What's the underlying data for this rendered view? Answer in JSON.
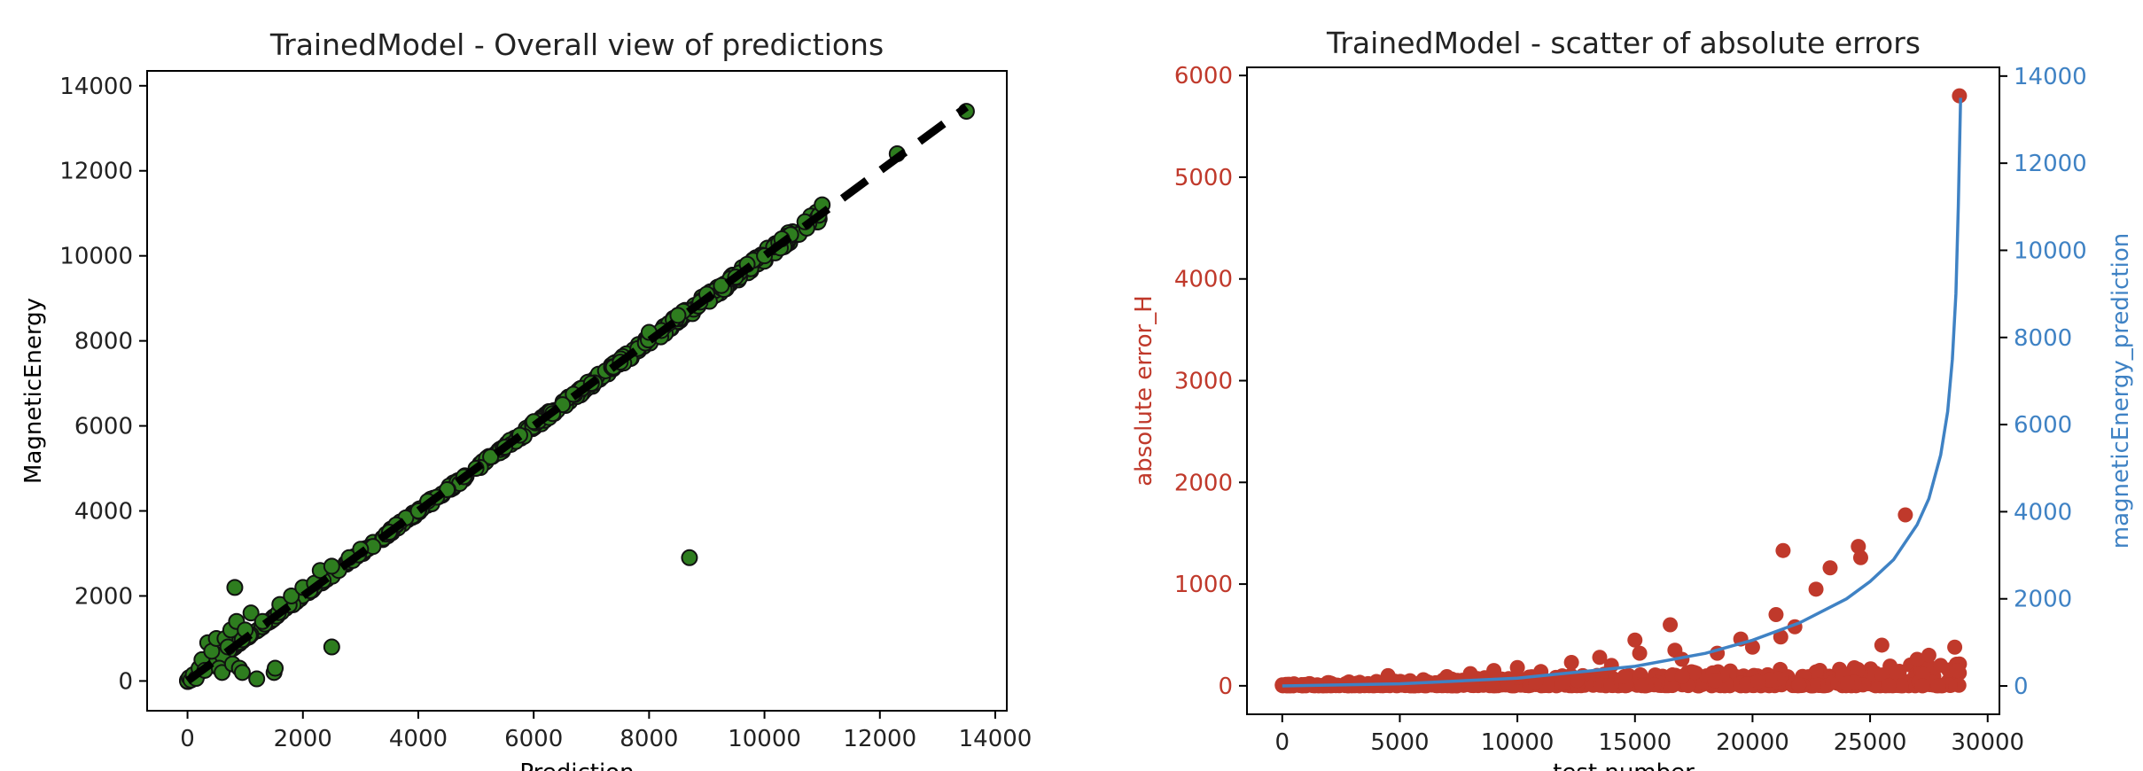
{
  "colors": {
    "axis": "#000000",
    "text": "#222222",
    "point_fill": "#2e7d1f",
    "point_edge": "#111111",
    "identity_line": "#000000",
    "error_points": "#c0392b",
    "error_axis": "#c0392b",
    "pred_line": "#3f82c4",
    "pred_axis": "#3f82c4"
  },
  "chart_data": [
    {
      "type": "scatter",
      "title": "TrainedModel - Overall view of predictions",
      "xlabel": "Prediction",
      "ylabel": "MagneticEnergy",
      "xlim": [
        -700,
        14200
      ],
      "ylim": [
        -700,
        14350
      ],
      "xticks": [
        0,
        2000,
        4000,
        6000,
        8000,
        10000,
        12000,
        14000
      ],
      "yticks": [
        0,
        2000,
        4000,
        6000,
        8000,
        10000,
        12000,
        14000
      ],
      "grid": false,
      "identity_line": {
        "x": [
          0,
          13500
        ],
        "y": [
          0,
          13500
        ],
        "style": "dashed"
      },
      "bulk_range": [
        0,
        11000
      ],
      "points": [
        [
          0,
          0
        ],
        [
          30,
          80
        ],
        [
          60,
          20
        ],
        [
          100,
          150
        ],
        [
          150,
          60
        ],
        [
          200,
          300
        ],
        [
          250,
          500
        ],
        [
          300,
          250
        ],
        [
          350,
          900
        ],
        [
          420,
          700
        ],
        [
          500,
          1000
        ],
        [
          550,
          300
        ],
        [
          600,
          200
        ],
        [
          650,
          1000
        ],
        [
          700,
          800
        ],
        [
          750,
          1200
        ],
        [
          780,
          400
        ],
        [
          820,
          2200
        ],
        [
          850,
          1400
        ],
        [
          900,
          300
        ],
        [
          950,
          200
        ],
        [
          1000,
          1200
        ],
        [
          1100,
          1600
        ],
        [
          1200,
          50
        ],
        [
          1300,
          1400
        ],
        [
          1500,
          200
        ],
        [
          1520,
          300
        ],
        [
          1600,
          1800
        ],
        [
          1800,
          2000
        ],
        [
          2000,
          2200
        ],
        [
          2200,
          2300
        ],
        [
          2300,
          2600
        ],
        [
          2500,
          800
        ],
        [
          2500,
          2700
        ],
        [
          2800,
          2900
        ],
        [
          3000,
          3100
        ],
        [
          3500,
          3500
        ],
        [
          4000,
          4000
        ],
        [
          4500,
          4500
        ],
        [
          5000,
          5000
        ],
        [
          5500,
          5500
        ],
        [
          6000,
          6100
        ],
        [
          6500,
          6500
        ],
        [
          7000,
          7000
        ],
        [
          7500,
          7500
        ],
        [
          8000,
          8200
        ],
        [
          8500,
          8600
        ],
        [
          8700,
          2900
        ],
        [
          9000,
          9100
        ],
        [
          9500,
          9500
        ],
        [
          9700,
          9800
        ],
        [
          10000,
          10000
        ],
        [
          10300,
          10400
        ],
        [
          10700,
          10800
        ],
        [
          11000,
          11200
        ],
        [
          12300,
          12400
        ],
        [
          13500,
          13400
        ]
      ]
    },
    {
      "type": "scatter",
      "title": "TrainedModel - scatter of absolute errors",
      "xlabel": "test number",
      "ylabel": "absolute error_H",
      "y2label": "magneticEnergy_prediction",
      "xlim": [
        -1500,
        30500
      ],
      "ylim": [
        -280,
        6080
      ],
      "y2lim": [
        -650,
        14200
      ],
      "xticks": [
        0,
        5000,
        10000,
        15000,
        20000,
        25000,
        30000
      ],
      "yticks": [
        0,
        1000,
        2000,
        3000,
        4000,
        5000,
        6000
      ],
      "y2ticks": [
        0,
        2000,
        4000,
        6000,
        8000,
        10000,
        12000,
        14000
      ],
      "grid": false,
      "series": [
        {
          "name": "absolute error_H",
          "axis": "left",
          "points": [
            [
              0,
              10
            ],
            [
              2000,
              30
            ],
            [
              4500,
              100
            ],
            [
              6000,
              60
            ],
            [
              7000,
              90
            ],
            [
              8000,
              120
            ],
            [
              9000,
              150
            ],
            [
              10000,
              180
            ],
            [
              11000,
              140
            ],
            [
              12300,
              230
            ],
            [
              13500,
              280
            ],
            [
              14000,
              200
            ],
            [
              15000,
              450
            ],
            [
              15200,
              320
            ],
            [
              16500,
              600
            ],
            [
              16700,
              350
            ],
            [
              17000,
              260
            ],
            [
              18500,
              320
            ],
            [
              19500,
              460
            ],
            [
              20000,
              380
            ],
            [
              21000,
              700
            ],
            [
              21200,
              480
            ],
            [
              21300,
              1330
            ],
            [
              21800,
              580
            ],
            [
              22700,
              950
            ],
            [
              23300,
              1160
            ],
            [
              24500,
              1370
            ],
            [
              24600,
              1260
            ],
            [
              25500,
              400
            ],
            [
              26500,
              1680
            ],
            [
              27000,
              260
            ],
            [
              27500,
              300
            ],
            [
              28000,
              200
            ],
            [
              28600,
              380
            ],
            [
              28700,
              150
            ],
            [
              28800,
              5800
            ]
          ]
        },
        {
          "name": "magneticEnergy_prediction",
          "axis": "right",
          "type": "line",
          "points": [
            [
              0,
              0
            ],
            [
              5000,
              50
            ],
            [
              10000,
              180
            ],
            [
              15000,
              450
            ],
            [
              18000,
              750
            ],
            [
              20000,
              1050
            ],
            [
              22000,
              1450
            ],
            [
              24000,
              2000
            ],
            [
              25000,
              2400
            ],
            [
              26000,
              2900
            ],
            [
              27000,
              3700
            ],
            [
              27500,
              4300
            ],
            [
              28000,
              5300
            ],
            [
              28300,
              6300
            ],
            [
              28500,
              7500
            ],
            [
              28650,
              9000
            ],
            [
              28750,
              11000
            ],
            [
              28850,
              13500
            ]
          ]
        }
      ]
    }
  ]
}
